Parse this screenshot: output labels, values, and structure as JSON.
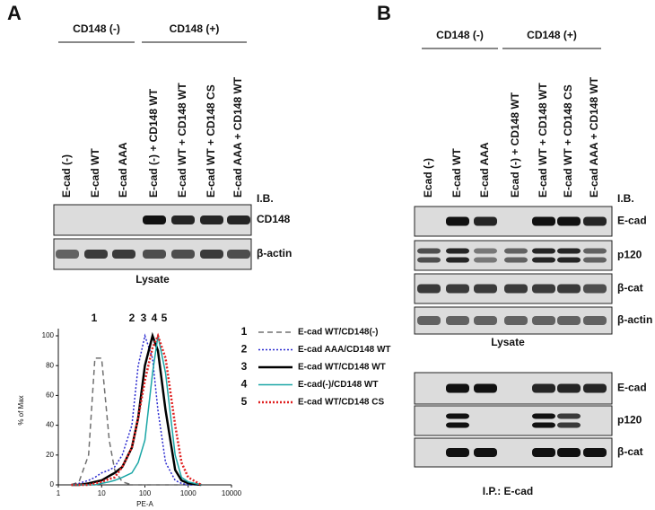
{
  "panel_a": {
    "letter": "A",
    "groups": [
      "CD148 (-)",
      "CD148 (+)"
    ],
    "lanes": [
      "E-cad (-)",
      "E-cad WT",
      "E-cad AAA",
      "E-cad (-)  + CD148 WT",
      "E-cad WT  + CD148 WT",
      "E-cad WT  + CD148 CS",
      "E-cad AAA  + CD148 WT"
    ],
    "ib": "I.B.",
    "blots": [
      "CD148",
      "β-actin"
    ],
    "caption": "Lysate"
  },
  "panel_b": {
    "letter": "B",
    "groups": [
      "CD148 (-)",
      "CD148 (+)"
    ],
    "lanes": [
      "Ecad (-)",
      "E-cad WT",
      "E-cad AAA",
      "Ecad (-)  + CD148 WT",
      "E-cad WT  + CD148 WT",
      "E-cad WT  + CD148 CS",
      "E-cad AAA  + CD148 WT"
    ],
    "ib": "I.B.",
    "lysate_blots": [
      "E-cad",
      "p120",
      "β-cat",
      "β-actin"
    ],
    "lysate_caption": "Lysate",
    "ip_blots": [
      "E-cad",
      "p120",
      "β-cat"
    ],
    "ip_caption": "I.P.: E-cad"
  },
  "chart_data": {
    "type": "line",
    "xlabel": "PE-A",
    "ylabel": "% of Max",
    "xlog": true,
    "xlim": [
      1,
      10000
    ],
    "xticks": [
      1,
      10,
      100,
      1000,
      10000
    ],
    "ylim": [
      0,
      100
    ],
    "yticks": [
      0,
      20,
      40,
      60,
      80,
      100
    ],
    "x": [
      2,
      3,
      5,
      7,
      10,
      15,
      20,
      30,
      50,
      70,
      100,
      150,
      200,
      300,
      500,
      700,
      1000,
      2000
    ],
    "series": [
      {
        "number": "1",
        "name": "E-cad WT/CD148(-)",
        "color": "#707070",
        "dash": "dashed",
        "values": [
          0,
          2,
          20,
          85,
          85,
          30,
          10,
          2,
          0,
          0,
          0,
          0,
          0,
          0,
          0,
          0,
          0,
          0
        ]
      },
      {
        "number": "2",
        "name": "E-cad AAA/CD148  WT",
        "color": "#2a2ad0",
        "dash": "dotted",
        "values": [
          0,
          1,
          3,
          5,
          8,
          10,
          12,
          20,
          40,
          80,
          100,
          85,
          50,
          15,
          3,
          1,
          0,
          0
        ]
      },
      {
        "number": "3",
        "name": "E-cad WT/CD148 WT",
        "color": "#000000",
        "dash": "solid",
        "values": [
          0,
          0,
          1,
          2,
          3,
          6,
          8,
          12,
          25,
          45,
          80,
          100,
          90,
          50,
          10,
          3,
          1,
          0
        ]
      },
      {
        "number": "4",
        "name": "E-cad(-)/CD148 WT",
        "color": "#1aa6a6",
        "dash": "solid",
        "values": [
          0,
          0,
          0,
          0,
          1,
          2,
          3,
          5,
          8,
          15,
          30,
          75,
          100,
          75,
          20,
          5,
          2,
          0
        ]
      },
      {
        "number": "5",
        "name": "E-cad WT/CD148 CS",
        "color": "#e02020",
        "dash": "dotted",
        "values": [
          0,
          0,
          0,
          1,
          2,
          4,
          5,
          12,
          25,
          45,
          70,
          92,
          100,
          85,
          40,
          15,
          5,
          0
        ]
      }
    ]
  }
}
